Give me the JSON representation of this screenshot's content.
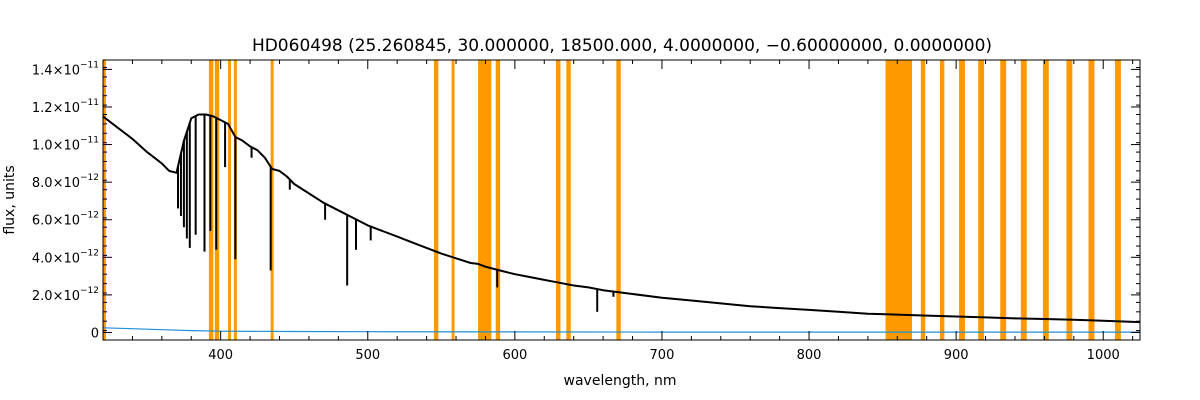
{
  "chart_data": {
    "type": "line",
    "title": "HD060498   (25.260845, 30.000000, 18500.000, 4.0000000, −0.60000000, 0.0000000)",
    "xlabel": "wavelength, nm",
    "ylabel": "flux, units",
    "xlim": [
      320,
      1025
    ],
    "ylim": [
      -4e-13,
      1.45e-11
    ],
    "x_ticks": [
      {
        "value": 400,
        "label": "400"
      },
      {
        "value": 500,
        "label": "500"
      },
      {
        "value": 600,
        "label": "600"
      },
      {
        "value": 700,
        "label": "700"
      },
      {
        "value": 800,
        "label": "800"
      },
      {
        "value": 900,
        "label": "900"
      },
      {
        "value": 1000,
        "label": "1000"
      }
    ],
    "y_ticks": [
      {
        "value": 0,
        "mantissa": "0",
        "exponent": ""
      },
      {
        "value": 2e-12,
        "mantissa": "2.0×10",
        "exponent": "−12"
      },
      {
        "value": 4e-12,
        "mantissa": "4.0×10",
        "exponent": "−12"
      },
      {
        "value": 6e-12,
        "mantissa": "6.0×10",
        "exponent": "−12"
      },
      {
        "value": 8e-12,
        "mantissa": "8.0×10",
        "exponent": "−12"
      },
      {
        "value": 1e-11,
        "mantissa": "1.0×10",
        "exponent": "−11"
      },
      {
        "value": 1.2e-11,
        "mantissa": "1.2×10",
        "exponent": "−11"
      },
      {
        "value": 1.4e-11,
        "mantissa": "1.4×10",
        "exponent": "−11"
      }
    ],
    "x_minor_step": 20,
    "y_minor_step": 5e-13,
    "grid": false,
    "colors": {
      "spectrum": "#000000",
      "error": "#1f8fd6",
      "mask": "#ff9900",
      "axes": "#000000"
    },
    "mask_bands": [
      [
        320,
        322
      ],
      [
        392,
        395
      ],
      [
        396,
        399
      ],
      [
        405,
        407
      ],
      [
        409,
        411
      ],
      [
        434,
        436
      ],
      [
        545,
        548
      ],
      [
        557,
        559
      ],
      [
        575,
        584
      ],
      [
        587,
        590
      ],
      [
        628,
        631
      ],
      [
        635,
        638
      ],
      [
        669,
        672
      ],
      [
        852,
        870
      ],
      [
        876,
        879
      ],
      [
        889,
        892
      ],
      [
        902,
        906
      ],
      [
        915,
        919
      ],
      [
        930,
        934
      ],
      [
        944,
        948
      ],
      [
        959,
        963
      ],
      [
        975,
        979
      ],
      [
        990,
        994
      ],
      [
        1008,
        1012
      ]
    ],
    "series": [
      {
        "role": "spectrum",
        "x": [
          320,
          330,
          340,
          350,
          360,
          365,
          370,
          375,
          380,
          385,
          390,
          395,
          400,
          405,
          410,
          415,
          420,
          425,
          430,
          435,
          440,
          445,
          450,
          460,
          470,
          480,
          490,
          500,
          510,
          520,
          530,
          540,
          550,
          560,
          570,
          575,
          580,
          585,
          590,
          600,
          610,
          620,
          630,
          640,
          650,
          660,
          670,
          680,
          700,
          720,
          740,
          760,
          780,
          800,
          820,
          840,
          860,
          880,
          900,
          920,
          940,
          960,
          980,
          1000,
          1025
        ],
        "y": [
          1.15e-11,
          1.09e-11,
          1.03e-11,
          9.6e-12,
          9e-12,
          8.6e-12,
          8.5e-12,
          1.02e-11,
          1.14e-11,
          1.16e-11,
          1.16e-11,
          1.15e-11,
          1.13e-11,
          1.11e-11,
          1.04e-11,
          1.02e-11,
          9.9e-12,
          9.7e-12,
          9.3e-12,
          8.7e-12,
          8.6e-12,
          8.3e-12,
          7.9e-12,
          7.4e-12,
          6.9e-12,
          6.5e-12,
          6.1e-12,
          5.7e-12,
          5.4e-12,
          5.1e-12,
          4.8e-12,
          4.5e-12,
          4.2e-12,
          3.95e-12,
          3.7e-12,
          3.65e-12,
          3.5e-12,
          3.4e-12,
          3.3e-12,
          3.1e-12,
          2.95e-12,
          2.8e-12,
          2.65e-12,
          2.5e-12,
          2.4e-12,
          2.25e-12,
          2.15e-12,
          2.05e-12,
          1.85e-12,
          1.7e-12,
          1.55e-12,
          1.4e-12,
          1.3e-12,
          1.2e-12,
          1.1e-12,
          1e-12,
          9.5e-13,
          9e-13,
          8.5e-13,
          8e-13,
          7.5e-13,
          7.2e-13,
          6.8e-13,
          6.2e-13,
          5.5e-13
        ]
      },
      {
        "role": "error",
        "x": [
          320,
          340,
          360,
          380,
          400,
          450,
          500,
          600,
          700,
          800,
          900,
          1000,
          1025
        ],
        "y": [
          2.5e-13,
          2e-13,
          1.5e-13,
          1e-13,
          7e-14,
          5e-14,
          4e-14,
          3e-14,
          2e-14,
          2e-14,
          2e-14,
          2e-14,
          2e-14
        ]
      }
    ],
    "absorption_lines": [
      {
        "x": 371,
        "y": 6.6e-12
      },
      {
        "x": 373,
        "y": 6.2e-12
      },
      {
        "x": 375,
        "y": 5.6e-12
      },
      {
        "x": 377,
        "y": 5e-12
      },
      {
        "x": 379,
        "y": 4.5e-12
      },
      {
        "x": 383,
        "y": 5.2e-12
      },
      {
        "x": 389,
        "y": 4.3e-12
      },
      {
        "x": 393,
        "y": 5.4e-12
      },
      {
        "x": 397,
        "y": 4.4e-12
      },
      {
        "x": 403,
        "y": 8.8e-12
      },
      {
        "x": 410,
        "y": 3.9e-12
      },
      {
        "x": 421,
        "y": 9.3e-12
      },
      {
        "x": 434,
        "y": 3.3e-12
      },
      {
        "x": 447,
        "y": 7.6e-12
      },
      {
        "x": 471,
        "y": 6e-12
      },
      {
        "x": 486,
        "y": 2.5e-12
      },
      {
        "x": 492,
        "y": 4.4e-12
      },
      {
        "x": 502,
        "y": 4.9e-12
      },
      {
        "x": 588,
        "y": 2.4e-12
      },
      {
        "x": 656,
        "y": 1.1e-12
      },
      {
        "x": 667,
        "y": 1.9e-12
      }
    ]
  }
}
